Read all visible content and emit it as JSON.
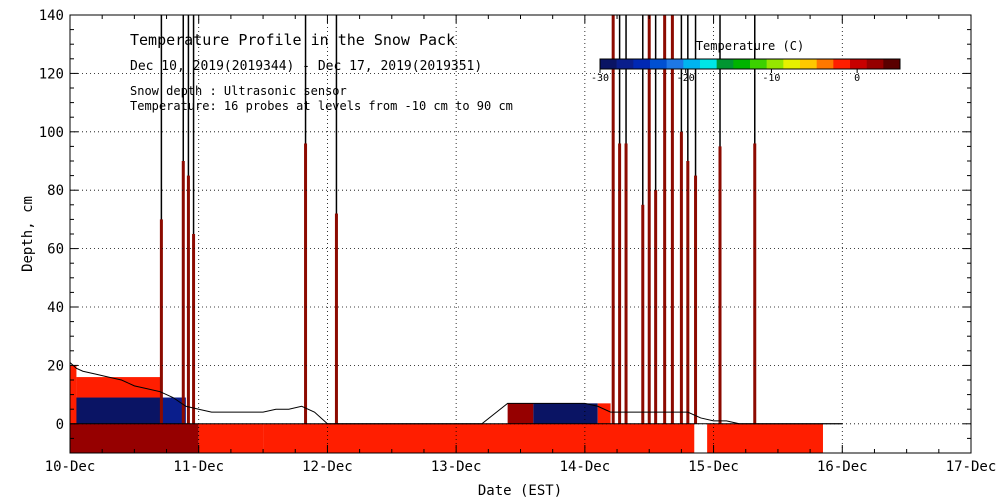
{
  "chart_data": {
    "type": "heatmap",
    "title": "Temperature Profile in the Snow Pack",
    "subtitle": "Dec 10, 2019(2019344) - Dec 17, 2019(2019351)",
    "annotations": [
      "Snow depth : Ultrasonic sensor",
      "Temperature: 16 probes at levels from -10 cm to 90 cm"
    ],
    "xlabel": "Date (EST)",
    "ylabel": "Depth, cm",
    "xlim": [
      0,
      7
    ],
    "ylim": [
      -10,
      140
    ],
    "x_ticks": [
      {
        "value": 0,
        "label": "10-Dec"
      },
      {
        "value": 1,
        "label": "11-Dec"
      },
      {
        "value": 2,
        "label": "12-Dec"
      },
      {
        "value": 3,
        "label": "13-Dec"
      },
      {
        "value": 4,
        "label": "14-Dec"
      },
      {
        "value": 5,
        "label": "15-Dec"
      },
      {
        "value": 6,
        "label": "16-Dec"
      },
      {
        "value": 7,
        "label": "17-Dec"
      }
    ],
    "y_ticks": [
      0,
      20,
      40,
      60,
      80,
      100,
      120,
      140
    ],
    "grid": true,
    "colorbar": {
      "title": "Temperature (C)",
      "range": [
        -30,
        5
      ],
      "tick_labels": [
        {
          "value": -30,
          "label": "-30"
        },
        {
          "value": -20,
          "label": "-20"
        },
        {
          "value": -10,
          "label": "-10"
        },
        {
          "value": 0,
          "label": "0"
        }
      ],
      "colors": [
        "#0a1464",
        "#0a1e8c",
        "#0028b4",
        "#0050d2",
        "#1e78e6",
        "#00b4f0",
        "#00e6e6",
        "#009632",
        "#00b400",
        "#3cd200",
        "#96e600",
        "#e6f000",
        "#ffc800",
        "#ff7800",
        "#ff1e00",
        "#c80000",
        "#960000",
        "#5a0000"
      ]
    },
    "snow_depth_series": {
      "x": [
        0.0,
        0.05,
        0.1,
        0.2,
        0.3,
        0.4,
        0.5,
        0.6,
        0.7,
        0.8,
        0.9,
        1.0,
        1.1,
        1.2,
        1.3,
        1.4,
        1.5,
        1.6,
        1.7,
        1.8,
        1.9,
        2.0,
        2.2,
        2.4,
        2.6,
        2.8,
        3.0,
        3.2,
        3.4,
        3.5,
        3.6,
        3.8,
        4.0,
        4.1,
        4.2,
        4.4,
        4.6,
        4.8,
        4.9,
        5.0,
        5.1,
        5.2,
        5.3,
        5.4,
        5.6,
        5.8,
        6.0
      ],
      "y": [
        21,
        19,
        18,
        17,
        16,
        15,
        13,
        12,
        11,
        9,
        6,
        5,
        4,
        4,
        4,
        4,
        4,
        5,
        5,
        6,
        4,
        0,
        0,
        0,
        0,
        0,
        0,
        0,
        7,
        7,
        7,
        7,
        7,
        6,
        4,
        4,
        4,
        4,
        2,
        1,
        1,
        0,
        0,
        0,
        0,
        0,
        0
      ]
    },
    "temperature_fields": [
      {
        "x_start": 0.0,
        "x_end": 0.7,
        "depth_top": 9,
        "depth_bottom": 0,
        "temperature": -30
      },
      {
        "x_start": 0.0,
        "x_end": 0.05,
        "depth_top": 20,
        "depth_bottom": 0,
        "temperature": -1
      },
      {
        "x_start": 0.05,
        "x_end": 0.7,
        "depth_top": 16,
        "depth_bottom": 9,
        "temperature": -1
      },
      {
        "x_start": 0.7,
        "x_end": 0.9,
        "depth_top": 9,
        "depth_bottom": 0,
        "temperature": -28
      },
      {
        "x_start": 3.4,
        "x_end": 3.6,
        "depth_top": 7,
        "depth_bottom": 0,
        "temperature": 3
      },
      {
        "x_start": 3.6,
        "x_end": 4.1,
        "depth_top": 7,
        "depth_bottom": 0,
        "temperature": -30
      },
      {
        "x_start": 4.1,
        "x_end": 4.2,
        "depth_top": 7,
        "depth_bottom": 0,
        "temperature": -1
      },
      {
        "x_start": 0.0,
        "x_end": 1.0,
        "depth_top": 0,
        "depth_bottom": -10,
        "temperature": 3
      },
      {
        "x_start": 1.0,
        "x_end": 1.5,
        "depth_top": 0,
        "depth_bottom": -10,
        "temperature": -1
      },
      {
        "x_start": 2.0,
        "x_end": 3.5,
        "depth_top": 0,
        "depth_bottom": -6,
        "temperature": -2
      },
      {
        "x_start": 2.5,
        "x_end": 3.4,
        "depth_top": 0,
        "depth_bottom": -3,
        "temperature": -5
      },
      {
        "x_start": 1.5,
        "x_end": 4.85,
        "depth_top": 0,
        "depth_bottom": -10,
        "temperature": -1
      },
      {
        "x_start": 4.95,
        "x_end": 5.85,
        "depth_top": 0,
        "depth_bottom": -10,
        "temperature": -1
      }
    ],
    "spikes": {
      "x": [
        0.71,
        0.88,
        0.92,
        0.96,
        1.83,
        2.07,
        4.22,
        4.27,
        4.32,
        4.45,
        4.5,
        4.55,
        4.62,
        4.68,
        4.75,
        4.8,
        4.86,
        5.05,
        5.32
      ],
      "top": [
        140,
        140,
        140,
        140,
        140,
        140,
        140,
        140,
        140,
        140,
        140,
        140,
        140,
        140,
        140,
        140,
        140,
        140,
        140
      ],
      "colored_top": [
        70,
        90,
        85,
        65,
        96,
        72,
        140,
        96,
        96,
        75,
        140,
        80,
        140,
        140,
        100,
        90,
        85,
        95,
        96
      ]
    }
  }
}
